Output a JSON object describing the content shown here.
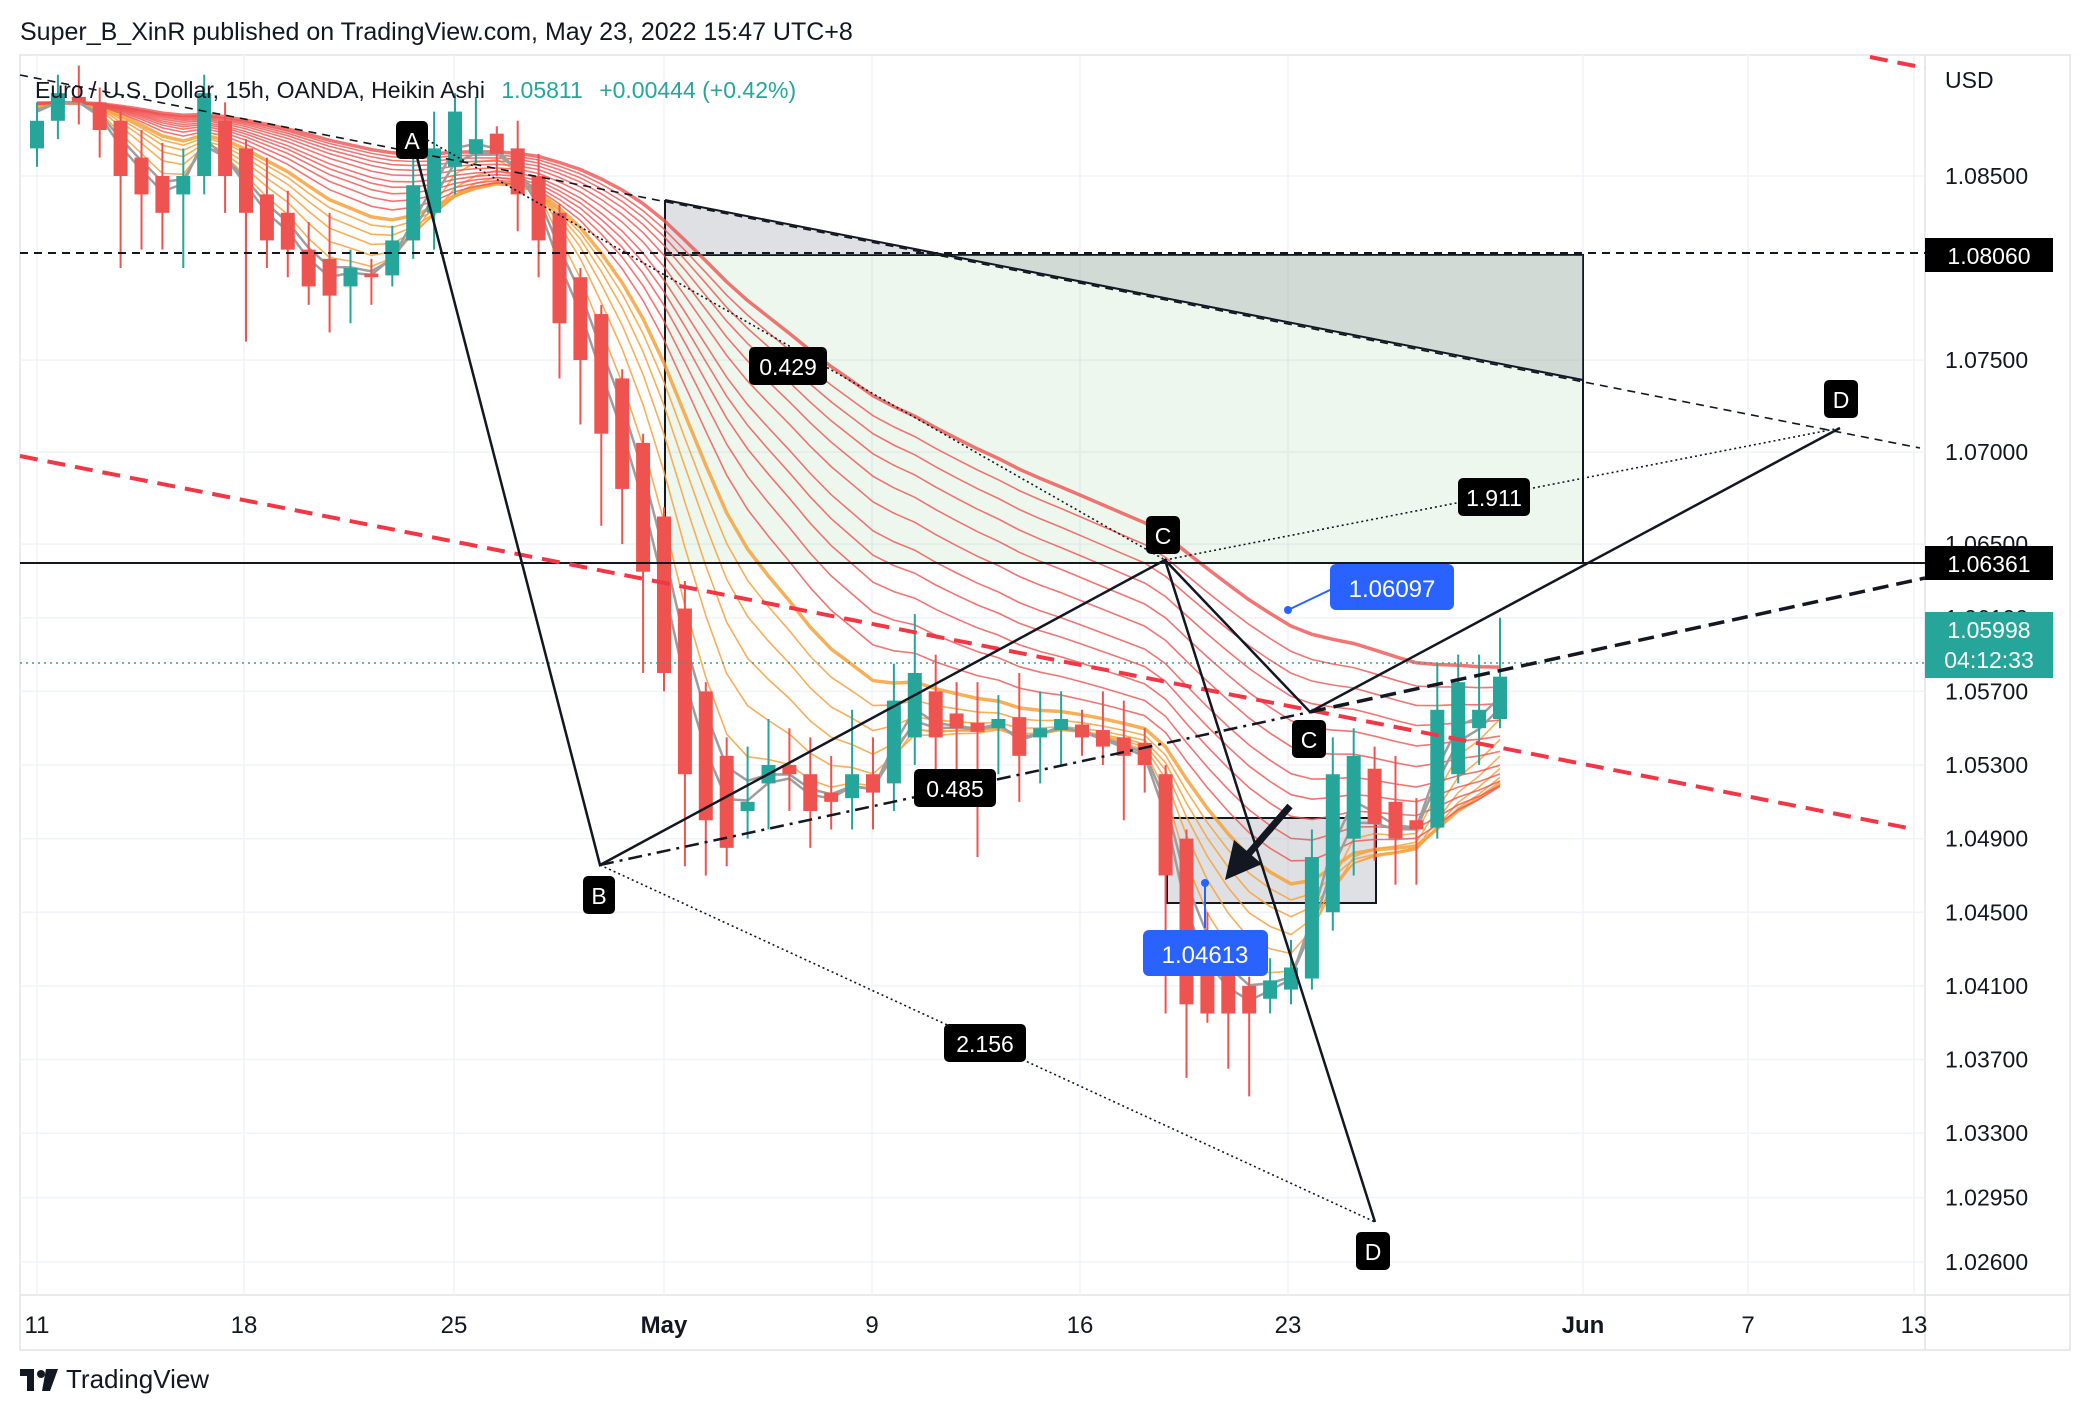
{
  "header": {
    "author": "Super_B_XinR",
    "published_on": "published on TradingView.com,",
    "date": "May 23, 2022 15:47 UTC+8"
  },
  "legend": {
    "symbol": "Euro / U.S. Dollar, 15h, OANDA, Heikin Ashi",
    "last": "1.05811",
    "change": "+0.00444 (+0.42%)",
    "change_color": "#26a69a"
  },
  "footer": {
    "brand": "TradingView"
  },
  "colors": {
    "bull": "#26a69a",
    "bear": "#ef5350",
    "ribbon_red": "#ef5350",
    "ribbon_orange": "#f7a13c",
    "blue_label": "#2962ff",
    "dashed_red": "#f23645"
  },
  "chart_data": {
    "type": "candlestick",
    "style": "Heikin Ashi",
    "currency": "USD",
    "y_ticks": [
      "1.08500",
      "1.07500",
      "1.07000",
      "1.06500",
      "1.06100",
      "1.05700",
      "1.05300",
      "1.04900",
      "1.04500",
      "1.04100",
      "1.03700",
      "1.03300",
      "1.02950",
      "1.02600"
    ],
    "x_ticks": [
      "11",
      "18",
      "25",
      "May",
      "9",
      "16",
      "23",
      "Jun",
      "7",
      "13"
    ],
    "ylim": [
      1.0245,
      1.0915
    ],
    "price_labels": {
      "line_upper": "1.08060",
      "line_lower": "1.06361",
      "current": "1.05998",
      "countdown": "04:12:33"
    },
    "point_labels": {
      "high": "1.06097",
      "low": "1.04613"
    },
    "pattern_labels": [
      "A",
      "B",
      "C",
      "D",
      "C",
      "D"
    ],
    "ratio_labels": [
      "0.429",
      "1.911",
      "0.485",
      "2.156"
    ],
    "candles": [
      {
        "x": 0.0,
        "o": 1.0865,
        "c": 1.088,
        "h": 1.089,
        "l": 1.0855
      },
      {
        "x": 1.0,
        "o": 1.088,
        "c": 1.0895,
        "h": 1.0905,
        "l": 1.087
      },
      {
        "x": 2.0,
        "o": 1.0893,
        "c": 1.089,
        "h": 1.091,
        "l": 1.0878
      },
      {
        "x": 3.0,
        "o": 1.089,
        "c": 1.0875,
        "h": 1.0898,
        "l": 1.086
      },
      {
        "x": 4.0,
        "o": 1.088,
        "c": 1.085,
        "h": 1.0885,
        "l": 1.08
      },
      {
        "x": 5.0,
        "o": 1.086,
        "c": 1.084,
        "h": 1.0875,
        "l": 1.081
      },
      {
        "x": 6.0,
        "o": 1.085,
        "c": 1.083,
        "h": 1.0868,
        "l": 1.081
      },
      {
        "x": 7.0,
        "o": 1.084,
        "c": 1.085,
        "h": 1.0865,
        "l": 1.08
      },
      {
        "x": 8.0,
        "o": 1.085,
        "c": 1.0895,
        "h": 1.0905,
        "l": 1.084
      },
      {
        "x": 9.0,
        "o": 1.088,
        "c": 1.085,
        "h": 1.089,
        "l": 1.083
      },
      {
        "x": 10.0,
        "o": 1.0865,
        "c": 1.083,
        "h": 1.087,
        "l": 1.076
      },
      {
        "x": 11.0,
        "o": 1.084,
        "c": 1.0815,
        "h": 1.086,
        "l": 1.08
      },
      {
        "x": 12.0,
        "o": 1.083,
        "c": 1.081,
        "h": 1.0842,
        "l": 1.0795
      },
      {
        "x": 13.0,
        "o": 1.081,
        "c": 1.079,
        "h": 1.0825,
        "l": 1.078
      },
      {
        "x": 14.0,
        "o": 1.0805,
        "c": 1.0785,
        "h": 1.083,
        "l": 1.0765
      },
      {
        "x": 15.0,
        "o": 1.079,
        "c": 1.08,
        "h": 1.081,
        "l": 1.077
      },
      {
        "x": 16.0,
        "o": 1.0797,
        "c": 1.0795,
        "h": 1.0805,
        "l": 1.078
      },
      {
        "x": 17.0,
        "o": 1.0796,
        "c": 1.0815,
        "h": 1.0823,
        "l": 1.079
      },
      {
        "x": 18.0,
        "o": 1.0815,
        "c": 1.0845,
        "h": 1.086,
        "l": 1.0805
      },
      {
        "x": 19.0,
        "o": 1.083,
        "c": 1.0865,
        "h": 1.0885,
        "l": 1.081
      },
      {
        "x": 20.0,
        "o": 1.0855,
        "c": 1.0885,
        "h": 1.0895,
        "l": 1.084
      },
      {
        "x": 21.0,
        "o": 1.0862,
        "c": 1.087,
        "h": 1.0893,
        "l": 1.0857
      },
      {
        "x": 22.0,
        "o": 1.0873,
        "c": 1.0862,
        "h": 1.0877,
        "l": 1.085
      },
      {
        "x": 23.0,
        "o": 1.0865,
        "c": 1.084,
        "h": 1.088,
        "l": 1.082
      },
      {
        "x": 24.0,
        "o": 1.085,
        "c": 1.0815,
        "h": 1.0862,
        "l": 1.0795
      },
      {
        "x": 25.0,
        "o": 1.083,
        "c": 1.077,
        "h": 1.0835,
        "l": 1.074
      },
      {
        "x": 26.0,
        "o": 1.0795,
        "c": 1.075,
        "h": 1.08,
        "l": 1.0715
      },
      {
        "x": 27.0,
        "o": 1.0775,
        "c": 1.071,
        "h": 1.078,
        "l": 1.066
      },
      {
        "x": 28.0,
        "o": 1.074,
        "c": 1.068,
        "h": 1.0745,
        "l": 1.065
      },
      {
        "x": 29.0,
        "o": 1.0705,
        "c": 1.0635,
        "h": 1.071,
        "l": 1.058
      },
      {
        "x": 30.0,
        "o": 1.0665,
        "c": 1.058,
        "h": 1.067,
        "l": 1.057
      },
      {
        "x": 31.0,
        "o": 1.0615,
        "c": 1.0525,
        "h": 1.063,
        "l": 1.0475
      },
      {
        "x": 32.0,
        "o": 1.057,
        "c": 1.05,
        "h": 1.0575,
        "l": 1.047
      },
      {
        "x": 33.0,
        "o": 1.0535,
        "c": 1.0485,
        "h": 1.0545,
        "l": 1.0475
      },
      {
        "x": 34.0,
        "o": 1.0505,
        "c": 1.051,
        "h": 1.054,
        "l": 1.049
      },
      {
        "x": 35.0,
        "o": 1.052,
        "c": 1.053,
        "h": 1.0555,
        "l": 1.0495
      },
      {
        "x": 36.0,
        "o": 1.053,
        "c": 1.0525,
        "h": 1.055,
        "l": 1.0505
      },
      {
        "x": 37.0,
        "o": 1.0525,
        "c": 1.0505,
        "h": 1.0545,
        "l": 1.0485
      },
      {
        "x": 38.0,
        "o": 1.0515,
        "c": 1.051,
        "h": 1.0535,
        "l": 1.0495
      },
      {
        "x": 39.0,
        "o": 1.0512,
        "c": 1.0525,
        "h": 1.056,
        "l": 1.0495
      },
      {
        "x": 40.0,
        "o": 1.0525,
        "c": 1.0515,
        "h": 1.0545,
        "l": 1.0495
      },
      {
        "x": 41.0,
        "o": 1.052,
        "c": 1.0565,
        "h": 1.0585,
        "l": 1.0505
      },
      {
        "x": 42.0,
        "o": 1.0545,
        "c": 1.058,
        "h": 1.0612,
        "l": 1.053
      },
      {
        "x": 43.0,
        "o": 1.057,
        "c": 1.0545,
        "h": 1.059,
        "l": 1.052
      },
      {
        "x": 44.0,
        "o": 1.0558,
        "c": 1.055,
        "h": 1.0575,
        "l": 1.052
      },
      {
        "x": 45.0,
        "o": 1.0553,
        "c": 1.0548,
        "h": 1.0575,
        "l": 1.048
      },
      {
        "x": 46.0,
        "o": 1.055,
        "c": 1.0555,
        "h": 1.0568,
        "l": 1.0525
      },
      {
        "x": 47.0,
        "o": 1.0556,
        "c": 1.0535,
        "h": 1.058,
        "l": 1.051
      },
      {
        "x": 48.0,
        "o": 1.0545,
        "c": 1.055,
        "h": 1.057,
        "l": 1.052
      },
      {
        "x": 49.0,
        "o": 1.0549,
        "c": 1.0555,
        "h": 1.057,
        "l": 1.053
      },
      {
        "x": 50.0,
        "o": 1.0552,
        "c": 1.0545,
        "h": 1.056,
        "l": 1.0535
      },
      {
        "x": 51.0,
        "o": 1.0549,
        "c": 1.054,
        "h": 1.057,
        "l": 1.053
      },
      {
        "x": 52.0,
        "o": 1.0545,
        "c": 1.0535,
        "h": 1.0565,
        "l": 1.05
      },
      {
        "x": 53.0,
        "o": 1.0542,
        "c": 1.053,
        "h": 1.055,
        "l": 1.0515
      },
      {
        "x": 54.0,
        "o": 1.0525,
        "c": 1.047,
        "h": 1.053,
        "l": 1.0395
      },
      {
        "x": 55.0,
        "o": 1.049,
        "c": 1.04,
        "h": 1.0495,
        "l": 1.036
      },
      {
        "x": 56.0,
        "o": 1.044,
        "c": 1.0395,
        "h": 1.045,
        "l": 1.039
      },
      {
        "x": 57.0,
        "o": 1.042,
        "c": 1.0395,
        "h": 1.043,
        "l": 1.0365
      },
      {
        "x": 58.0,
        "o": 1.041,
        "c": 1.0395,
        "h": 1.0415,
        "l": 1.035
      },
      {
        "x": 59.0,
        "o": 1.0403,
        "c": 1.0413,
        "h": 1.0425,
        "l": 1.0395
      },
      {
        "x": 60.0,
        "o": 1.0408,
        "c": 1.042,
        "h": 1.0435,
        "l": 1.04
      },
      {
        "x": 61.0,
        "o": 1.0414,
        "c": 1.048,
        "h": 1.0495,
        "l": 1.0408
      },
      {
        "x": 62.0,
        "o": 1.045,
        "c": 1.0525,
        "h": 1.0545,
        "l": 1.044
      },
      {
        "x": 63.0,
        "o": 1.049,
        "c": 1.0535,
        "h": 1.055,
        "l": 1.047
      },
      {
        "x": 64.0,
        "o": 1.0528,
        "c": 1.0498,
        "h": 1.054,
        "l": 1.0478
      },
      {
        "x": 65.0,
        "o": 1.051,
        "c": 1.049,
        "h": 1.0535,
        "l": 1.0465
      },
      {
        "x": 66.0,
        "o": 1.05,
        "c": 1.0495,
        "h": 1.0512,
        "l": 1.0465
      },
      {
        "x": 67.0,
        "o": 1.0496,
        "c": 1.056,
        "h": 1.0585,
        "l": 1.049
      },
      {
        "x": 68.0,
        "o": 1.0525,
        "c": 1.0575,
        "h": 1.059,
        "l": 1.052
      },
      {
        "x": 69.0,
        "o": 1.055,
        "c": 1.056,
        "h": 1.059,
        "l": 1.053
      },
      {
        "x": 70.0,
        "o": 1.0555,
        "c": 1.0578,
        "h": 1.061,
        "l": 1.055
      }
    ]
  }
}
